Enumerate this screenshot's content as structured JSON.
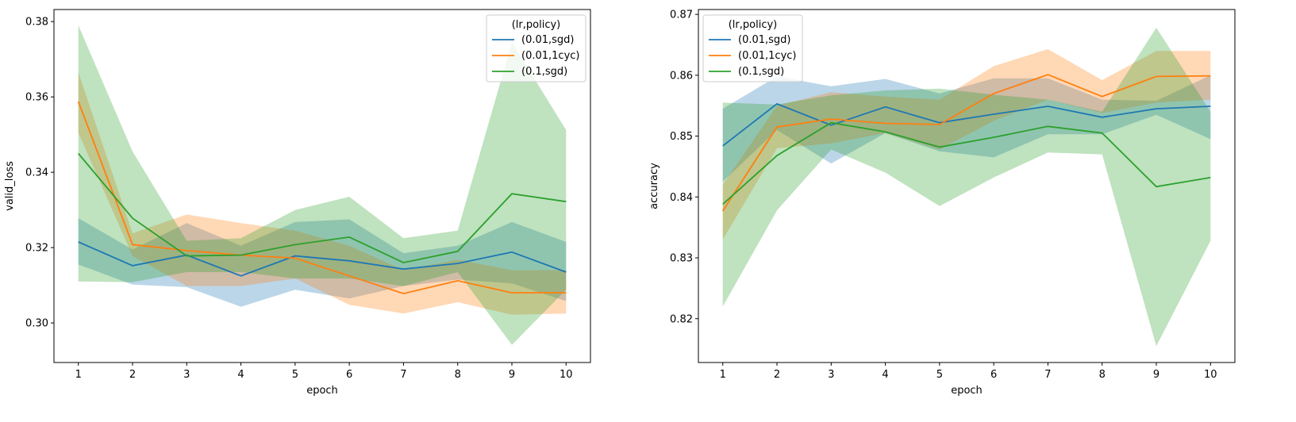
{
  "chart_data": [
    {
      "type": "line",
      "xlabel": "epoch",
      "ylabel": "valid_loss",
      "x": [
        1,
        2,
        3,
        4,
        5,
        6,
        7,
        8,
        9,
        10
      ],
      "xlim": [
        0.55,
        10.45
      ],
      "ylim": [
        0.2895,
        0.3832
      ],
      "yticks": [
        0.3,
        0.32,
        0.34,
        0.36,
        0.38
      ],
      "ytick_labels": [
        "0.30",
        "0.32",
        "0.34",
        "0.36",
        "0.38"
      ],
      "legend": {
        "title": "(lr,policy)",
        "placement": "upper right"
      },
      "series": [
        {
          "name": "(0.01,sgd)",
          "color": "#1f77b4",
          "values": [
            0.3215,
            0.3152,
            0.318,
            0.3125,
            0.3178,
            0.3165,
            0.3143,
            0.3158,
            0.3188,
            0.3135
          ],
          "lower": [
            0.3155,
            0.3102,
            0.3095,
            0.3043,
            0.3088,
            0.3065,
            0.3098,
            0.3115,
            0.3105,
            0.3058
          ],
          "upper": [
            0.3278,
            0.3195,
            0.3265,
            0.3205,
            0.3268,
            0.3275,
            0.3185,
            0.3205,
            0.3268,
            0.3215
          ]
        },
        {
          "name": "(0.01,1cyc)",
          "color": "#ff7f0e",
          "values": [
            0.3588,
            0.3208,
            0.3192,
            0.318,
            0.3172,
            0.3125,
            0.3078,
            0.3112,
            0.308,
            0.308
          ],
          "lower": [
            0.3505,
            0.3178,
            0.3098,
            0.3098,
            0.3118,
            0.3048,
            0.3025,
            0.3055,
            0.3022,
            0.3025
          ],
          "upper": [
            0.3665,
            0.3238,
            0.3288,
            0.3265,
            0.3245,
            0.3205,
            0.314,
            0.3168,
            0.314,
            0.314
          ]
        },
        {
          "name": "(0.1,sgd)",
          "color": "#2ca02c",
          "values": [
            0.345,
            0.3278,
            0.3178,
            0.318,
            0.3208,
            0.3228,
            0.316,
            0.319,
            0.3343,
            0.3322
          ],
          "lower": [
            0.311,
            0.3108,
            0.3135,
            0.3135,
            0.3118,
            0.3118,
            0.3098,
            0.3135,
            0.2942,
            0.3088
          ],
          "upper": [
            0.379,
            0.3455,
            0.3218,
            0.3225,
            0.33,
            0.3335,
            0.3225,
            0.3245,
            0.3745,
            0.3512
          ]
        }
      ]
    },
    {
      "type": "line",
      "xlabel": "epoch",
      "ylabel": "accuracy",
      "x": [
        1,
        2,
        3,
        4,
        5,
        6,
        7,
        8,
        9,
        10
      ],
      "xlim": [
        0.55,
        10.45
      ],
      "ylim": [
        0.8128,
        0.8708
      ],
      "yticks": [
        0.82,
        0.83,
        0.84,
        0.85,
        0.86,
        0.87
      ],
      "ytick_labels": [
        "0.82",
        "0.83",
        "0.84",
        "0.85",
        "0.86",
        "0.87"
      ],
      "legend": {
        "title": "(lr,policy)",
        "placement": "upper left"
      },
      "series": [
        {
          "name": "(0.01,sgd)",
          "color": "#1f77b4",
          "values": [
            0.8484,
            0.8553,
            0.8518,
            0.8548,
            0.8522,
            0.8536,
            0.8549,
            0.8531,
            0.8545,
            0.8549
          ],
          "lower": [
            0.8425,
            0.851,
            0.8455,
            0.8505,
            0.8475,
            0.8465,
            0.8503,
            0.8503,
            0.8535,
            0.8495
          ],
          "upper": [
            0.8545,
            0.8598,
            0.8582,
            0.8594,
            0.857,
            0.8595,
            0.8595,
            0.856,
            0.8558,
            0.86
          ]
        },
        {
          "name": "(0.01,1cyc)",
          "color": "#ff7f0e",
          "values": [
            0.8377,
            0.8515,
            0.8528,
            0.8521,
            0.8519,
            0.857,
            0.8601,
            0.8565,
            0.8598,
            0.8599
          ],
          "lower": [
            0.833,
            0.848,
            0.8488,
            0.8505,
            0.8478,
            0.8525,
            0.856,
            0.8538,
            0.8555,
            0.856
          ],
          "upper": [
            0.842,
            0.855,
            0.8572,
            0.8565,
            0.856,
            0.8615,
            0.8643,
            0.8592,
            0.864,
            0.864
          ]
        },
        {
          "name": "(0.1,sgd)",
          "color": "#2ca02c",
          "values": [
            0.8388,
            0.8468,
            0.8522,
            0.8507,
            0.8482,
            0.8498,
            0.8516,
            0.8505,
            0.8417,
            0.8432
          ],
          "lower": [
            0.822,
            0.8378,
            0.8478,
            0.844,
            0.8385,
            0.8432,
            0.8473,
            0.847,
            0.8155,
            0.8328
          ],
          "upper": [
            0.8555,
            0.8552,
            0.8567,
            0.8575,
            0.8578,
            0.8568,
            0.856,
            0.854,
            0.8678,
            0.854
          ]
        }
      ]
    }
  ]
}
